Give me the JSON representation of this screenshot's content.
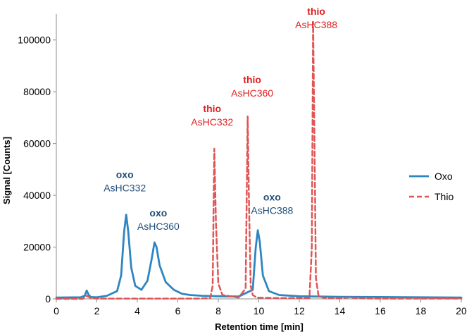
{
  "chart_data": {
    "type": "line",
    "title": "",
    "xlabel": "Retention time [min]",
    "ylabel": "Signal [Counts]",
    "xlim": [
      0,
      20
    ],
    "ylim": [
      0,
      110000
    ],
    "xticks": [
      0,
      2,
      4,
      6,
      8,
      10,
      12,
      14,
      16,
      18,
      20
    ],
    "yticks": [
      0,
      20000,
      40000,
      60000,
      80000,
      100000
    ],
    "grid": false,
    "legend_position": "right",
    "colors": {
      "Oxo": "#2e86c1",
      "Thio": "#e05555",
      "oxo_label": "#1f4e79",
      "thio_label": "#e02020"
    },
    "series": [
      {
        "name": "Oxo",
        "style": "solid",
        "x": [
          0,
          1.2,
          1.4,
          1.5,
          1.6,
          1.7,
          2.0,
          2.5,
          3.0,
          3.2,
          3.35,
          3.45,
          3.55,
          3.7,
          3.9,
          4.2,
          4.5,
          4.7,
          4.85,
          4.95,
          5.1,
          5.4,
          5.8,
          6.2,
          6.6,
          7.2,
          8.0,
          9.0,
          9.7,
          9.85,
          9.95,
          10.05,
          10.2,
          10.5,
          11.0,
          12.0,
          14.0,
          16.0,
          18.0,
          20.0
        ],
        "y": [
          500,
          600,
          1200,
          3200,
          1500,
          700,
          600,
          1200,
          3000,
          9000,
          26000,
          32500,
          26000,
          12000,
          5000,
          3500,
          7000,
          15000,
          21800,
          20000,
          13000,
          6500,
          3500,
          2000,
          1500,
          1200,
          1000,
          900,
          3500,
          20000,
          26500,
          22000,
          9000,
          3000,
          1500,
          1000,
          800,
          700,
          600,
          500
        ]
      },
      {
        "name": "Thio",
        "style": "dashed",
        "x": [
          0,
          1.3,
          1.5,
          1.7,
          2.0,
          3.0,
          5.0,
          7.0,
          7.6,
          7.72,
          7.8,
          7.88,
          8.0,
          8.2,
          9.0,
          9.35,
          9.45,
          9.52,
          9.6,
          9.7,
          9.9,
          11.0,
          12.5,
          12.62,
          12.68,
          12.75,
          12.82,
          12.95,
          13.2,
          14.0,
          14.5,
          15.0,
          16.0,
          20.0
        ],
        "y": [
          0,
          0,
          1200,
          300,
          100,
          100,
          100,
          100,
          300,
          5000,
          58000,
          30000,
          6000,
          1500,
          500,
          4000,
          70500,
          35000,
          5000,
          1500,
          500,
          300,
          300,
          20000,
          107000,
          60000,
          8000,
          1200,
          400,
          300,
          600,
          200,
          100,
          100
        ]
      }
    ],
    "annotations": [
      {
        "kind": "oxo",
        "name": "AsHC332",
        "series": "Oxo",
        "x": 3.45,
        "y": 32500
      },
      {
        "kind": "oxo",
        "name": "AsHC360",
        "series": "Oxo",
        "x": 4.9,
        "y": 21800
      },
      {
        "kind": "oxo",
        "name": "AsHC388",
        "series": "Oxo",
        "x": 10.1,
        "y": 26500
      },
      {
        "kind": "thio",
        "name": "AsHC332",
        "series": "Thio",
        "x": 7.8,
        "y": 58000
      },
      {
        "kind": "thio",
        "name": "AsHC360",
        "series": "Thio",
        "x": 9.5,
        "y": 70500
      },
      {
        "kind": "thio",
        "name": "AsHC388",
        "series": "Thio",
        "x": 12.7,
        "y": 107000
      }
    ]
  }
}
